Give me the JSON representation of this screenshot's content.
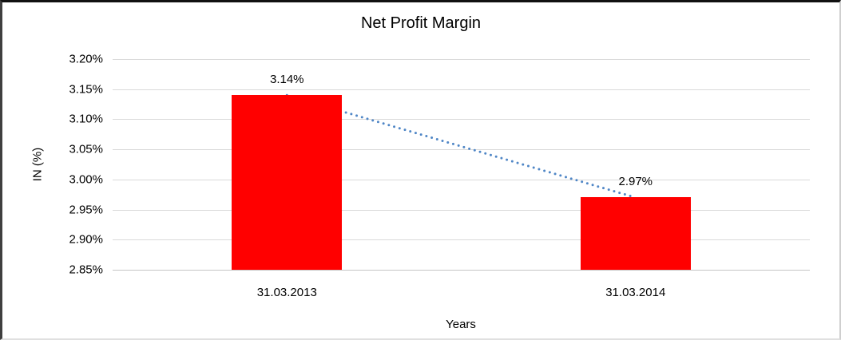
{
  "chart_data": {
    "type": "bar",
    "title": "Net Profit Margin",
    "xlabel": "Years",
    "ylabel": "IN (%)",
    "categories": [
      "31.03.2013",
      "31.03.2014"
    ],
    "values": [
      3.14,
      2.97
    ],
    "data_labels": [
      "3.14%",
      "2.97%"
    ],
    "ytick_labels": [
      "3.20%",
      "3.15%",
      "3.10%",
      "3.05%",
      "3.00%",
      "2.95%",
      "2.90%",
      "2.85%"
    ],
    "ytick_values": [
      3.2,
      3.15,
      3.1,
      3.05,
      3.0,
      2.95,
      2.9,
      2.85
    ],
    "ylim": [
      2.85,
      3.2
    ],
    "grid": "horizontal",
    "legend": "none",
    "colors": {
      "bar": "#FF0000",
      "trendline": "#4F86C6",
      "gridline": "#D9D9D9",
      "axis_line": "#C6C6C6",
      "text": "#000000"
    },
    "trendline": {
      "style": "dotted",
      "color": "#4F86C6",
      "from_value": 3.14,
      "to_value": 2.97
    }
  }
}
